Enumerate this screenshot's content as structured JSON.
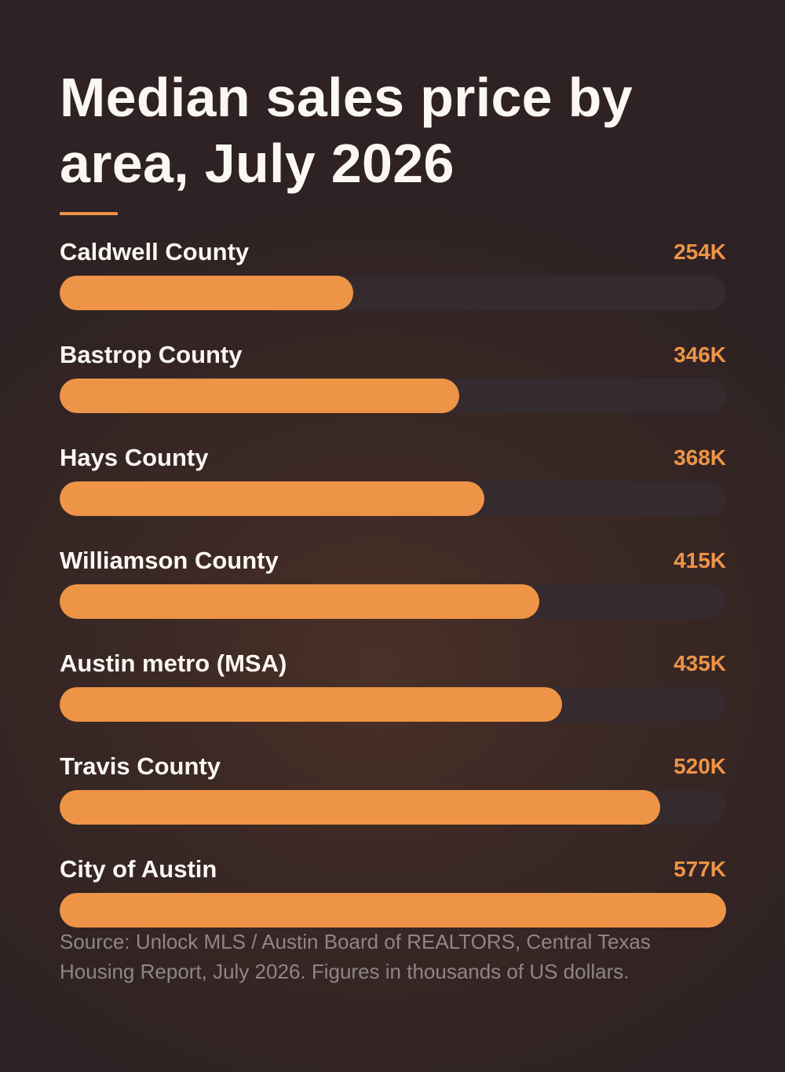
{
  "chart_data": {
    "type": "bar",
    "orientation": "horizontal",
    "title": "Median sales price by area, July 2026",
    "categories": [
      "Caldwell County",
      "Bastrop County",
      "Hays County",
      "Williamson County",
      "Austin metro (MSA)",
      "Travis County",
      "City of Austin"
    ],
    "values": [
      254,
      346,
      368,
      415,
      435,
      520,
      577
    ],
    "value_labels": [
      "254K",
      "346K",
      "368K",
      "415K",
      "435K",
      "520K",
      "577K"
    ],
    "xlim": [
      0,
      577
    ],
    "grid": false,
    "legend": "none",
    "colors": {
      "bar": "#ee9447",
      "track": "#352a2e",
      "accent": "#ee9447"
    }
  },
  "source": "Source: Unlock MLS / Austin Board of REALTORS, Central Texas Housing Report, July 2026. Figures in thousands of US dollars."
}
